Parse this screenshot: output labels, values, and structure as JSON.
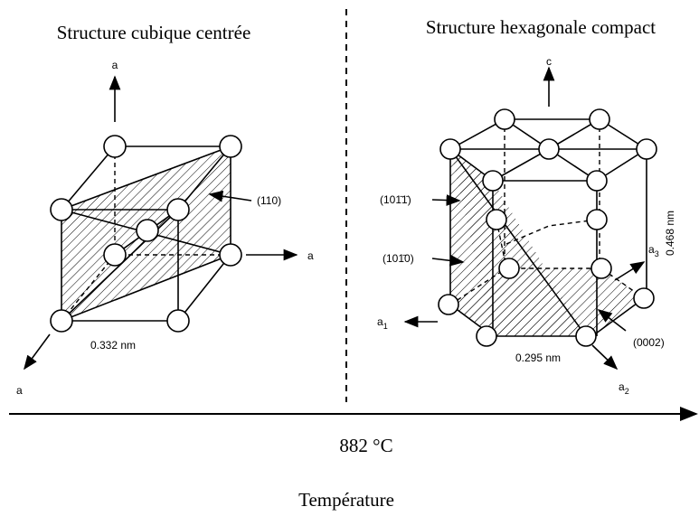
{
  "left": {
    "title": "Structure cubique centrée",
    "axis_top": "a",
    "axis_right": "a",
    "axis_front": "a",
    "plane": "(110)",
    "lattice": "0.332 nm"
  },
  "right": {
    "title": "Structure hexagonale compact",
    "axis_c": "c",
    "plane_pyramidal": "(101̄1̄)",
    "plane_prismatic": "(101̄0)",
    "plane_basal": "(0002)",
    "height": "0.468 nm",
    "lattice": "0.295 nm",
    "a1": {
      "base": "a",
      "sub": "1"
    },
    "a2": {
      "base": "a",
      "sub": "2"
    },
    "a3": {
      "base": "a",
      "sub": "3"
    }
  },
  "axis": {
    "transition": "882 °C",
    "label": "Température"
  }
}
